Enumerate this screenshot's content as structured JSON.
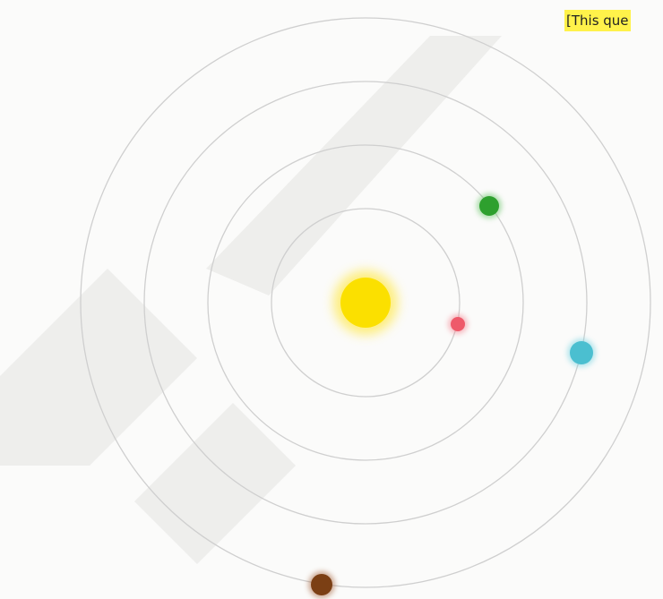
{
  "banner": {
    "text": "[This que"
  }
}
